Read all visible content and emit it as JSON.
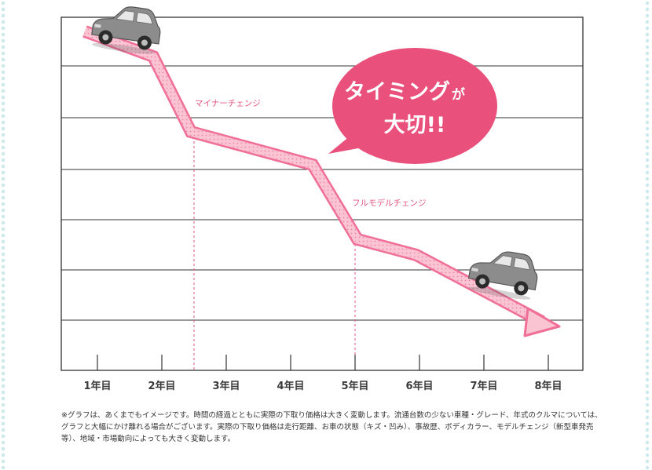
{
  "chart_data": {
    "type": "line",
    "categories": [
      "1年目",
      "2年目",
      "3年目",
      "4年目",
      "5年目",
      "6年目",
      "7年目",
      "8年目"
    ],
    "title": "",
    "xlabel": "",
    "ylabel": "",
    "grid": true,
    "y_ticks_shown": false,
    "annotations": [
      {
        "text": "マイナーチェンジ",
        "x": 2.5
      },
      {
        "text": "フルモデルチェンジ",
        "x": 5.0
      }
    ],
    "callout": {
      "line1_main": "タイミング",
      "line1_small": "が",
      "line2": "大切!!"
    }
  },
  "colors": {
    "line": "#f06f96",
    "line_light": "#fbc4d3",
    "dashed": "#e2557f",
    "bubble": "#e9507c",
    "grid": "#333333",
    "car_body": "#8c8c8c"
  },
  "icons": [
    "car-icon",
    "car-icon"
  ],
  "footnote": "※グラフは、あくまでもイメージです。時間の経過とともに実際の下取り価格は大きく変動します。流通台数の少ない車種・グレード、年式のクルマについては、グラフと大幅にかけ離れる場合がございます。実際の下取り価格は走行距離、お車の状態（キズ・凹み）、事故歴、ボディカラー、モデルチェンジ（新型車発売等）、地域・市場動向によっても大きく変動します。"
}
